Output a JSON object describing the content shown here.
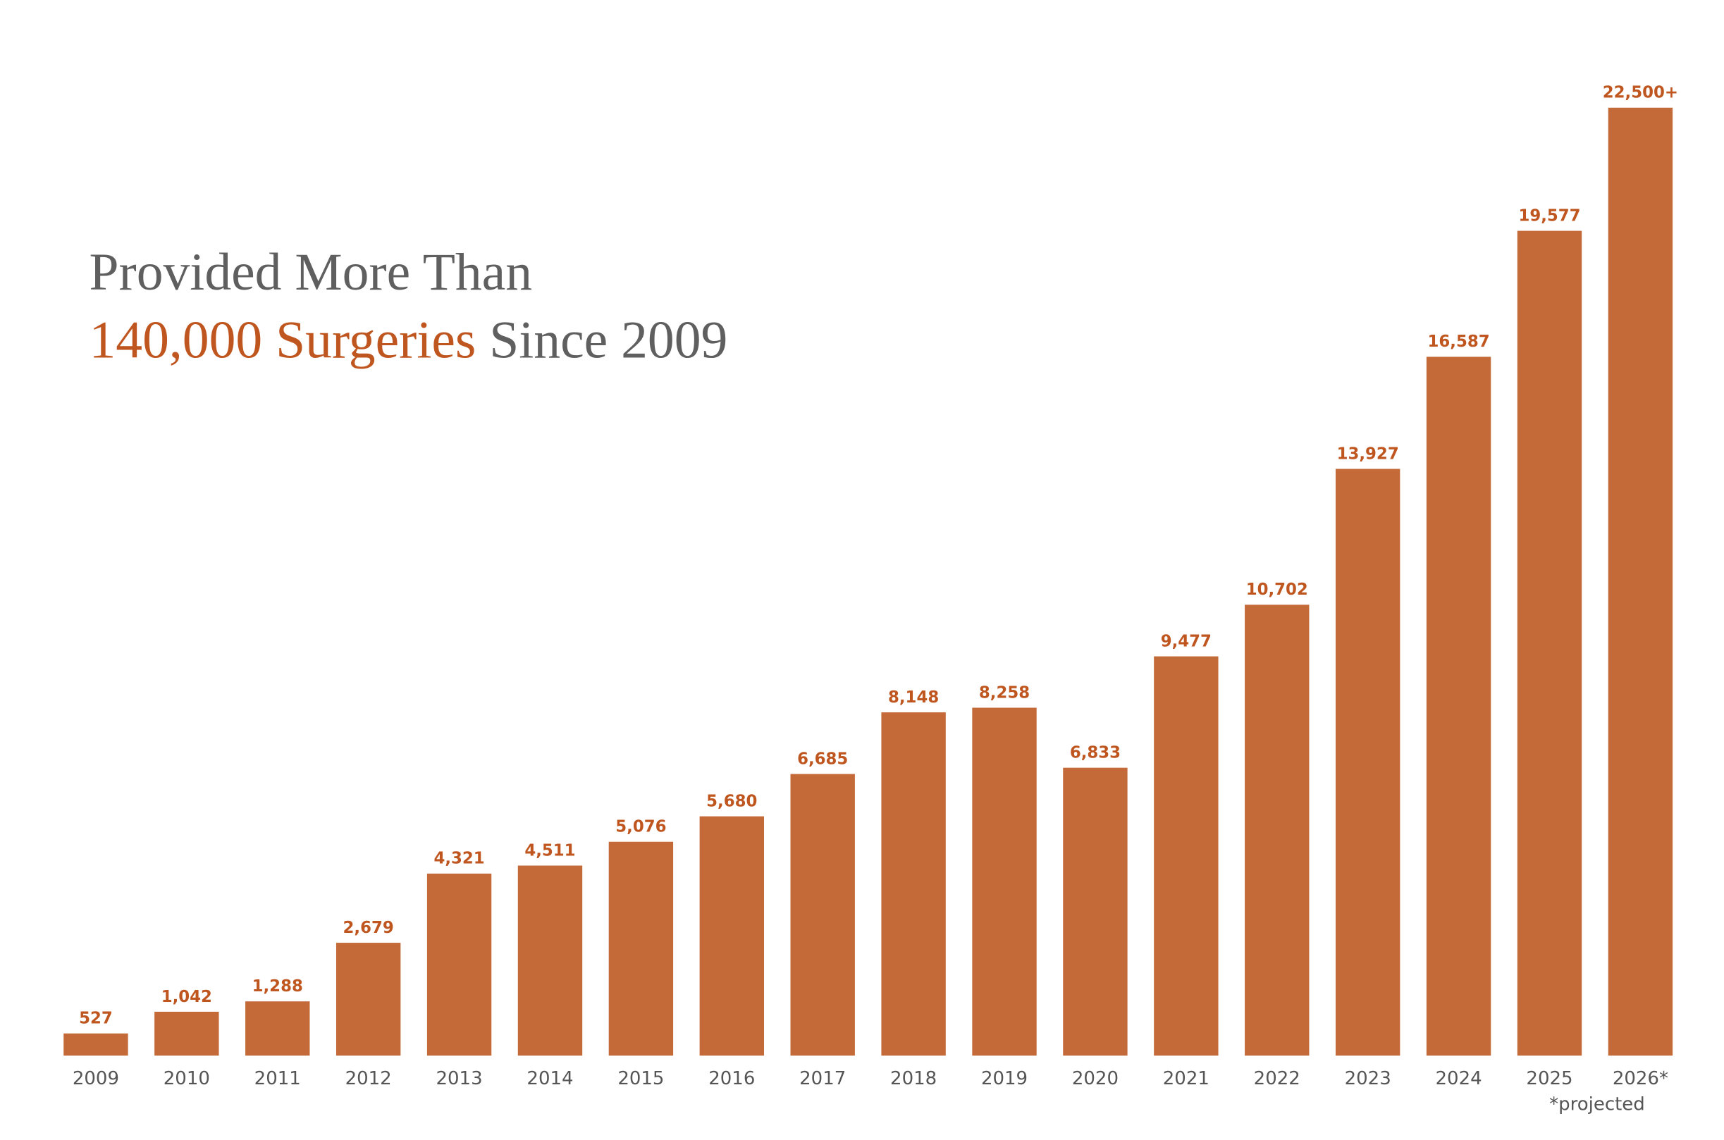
{
  "chart_data": {
    "type": "bar",
    "title_line1": "Provided More Than",
    "title_highlight": "140,000 Surgeries",
    "title_rest": "Since 2009",
    "categories": [
      "2009",
      "2010",
      "2011",
      "2012",
      "2013",
      "2014",
      "2015",
      "2016",
      "2017",
      "2018",
      "2019",
      "2020",
      "2021",
      "2022",
      "2023",
      "2024",
      "2025",
      "2026*"
    ],
    "values": [
      527,
      1042,
      1288,
      2679,
      4321,
      4511,
      5076,
      5680,
      6685,
      8148,
      8258,
      6833,
      9477,
      10702,
      13927,
      16587,
      19577,
      22500
    ],
    "value_labels": [
      "527",
      "1,042",
      "1,288",
      "2,679",
      "4,321",
      "4,511",
      "5,076",
      "5,680",
      "6,685",
      "8,148",
      "8,258",
      "6,833",
      "9,477",
      "10,702",
      "13,927",
      "16,587",
      "19,577",
      "22,500+"
    ],
    "color": "#c46a38",
    "footnote": "*projected"
  }
}
